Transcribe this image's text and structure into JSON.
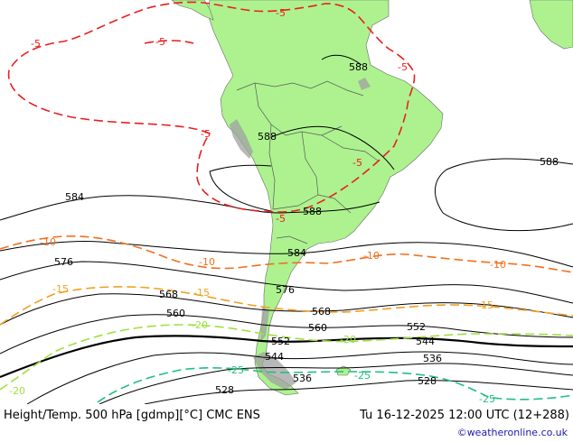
{
  "footer": {
    "title_left": "Height/Temp. 500 hPa [gdmp][°C] CMC ENS",
    "title_right": "Tu 16-12-2025 12:00 UTC (12+288)",
    "credit": "©weatheronline.co.uk"
  },
  "labels": {
    "height": [
      "588",
      "588",
      "588",
      "588",
      "584",
      "584",
      "576",
      "576",
      "568",
      "568",
      "560",
      "560",
      "552",
      "552",
      "544",
      "544",
      "536",
      "536",
      "528",
      "528"
    ],
    "temp": [
      "-5",
      "-5",
      "-5",
      "-5",
      "-5",
      "-5",
      "-5",
      "-10",
      "-10",
      "-10",
      "-10",
      "-15",
      "-15",
      "-15",
      "-20",
      "-20",
      "-20",
      "-25",
      "-25",
      "-25"
    ]
  },
  "colors": {
    "land": "#adf28f",
    "height_contour": "#000000",
    "temp_minus5": "#e82020",
    "temp_minus10": "#f07020",
    "temp_minus15": "#f0a020",
    "temp_minus20": "#a0e040",
    "temp_minus25": "#20c080",
    "terrain": "#a0a0a0",
    "credit": "#1a1aa8"
  }
}
